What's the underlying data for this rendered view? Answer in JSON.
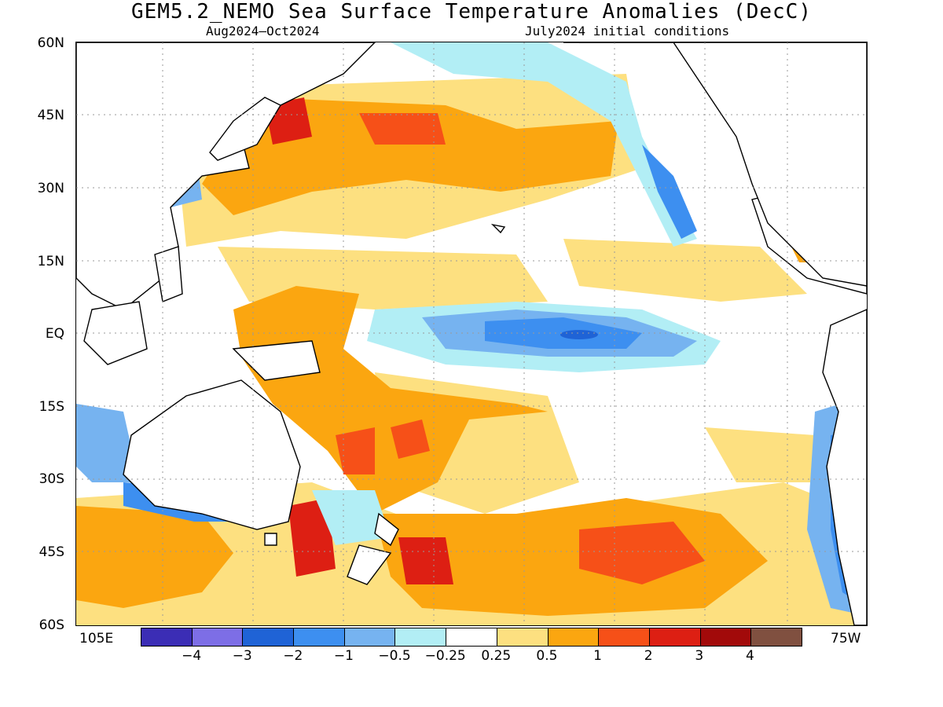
{
  "title": "GEM5.2_NEMO Sea Surface Temperature Anomalies (DecC)",
  "subtitle_left": "Aug2024–Oct2024",
  "subtitle_right": "July2024 initial conditions",
  "lat_labels": [
    "60N",
    "45N",
    "30N",
    "15N",
    "EQ",
    "15S",
    "30S",
    "45S",
    "60S"
  ],
  "lon_left": "105E",
  "lon_right": "75W",
  "legend": {
    "colors": [
      "#3b2db5",
      "#7d6ee6",
      "#1f63d6",
      "#3d8ff0",
      "#76b3f0",
      "#b2eef5",
      "#ffffff",
      "#fde080",
      "#fba610",
      "#f65018",
      "#dd1f13",
      "#a20a0a",
      "#805040"
    ],
    "labels": [
      "−4",
      "−3",
      "−2",
      "−1",
      "−0.5",
      "−0.25",
      "0.25",
      "0.5",
      "1",
      "2",
      "3",
      "4"
    ]
  }
}
